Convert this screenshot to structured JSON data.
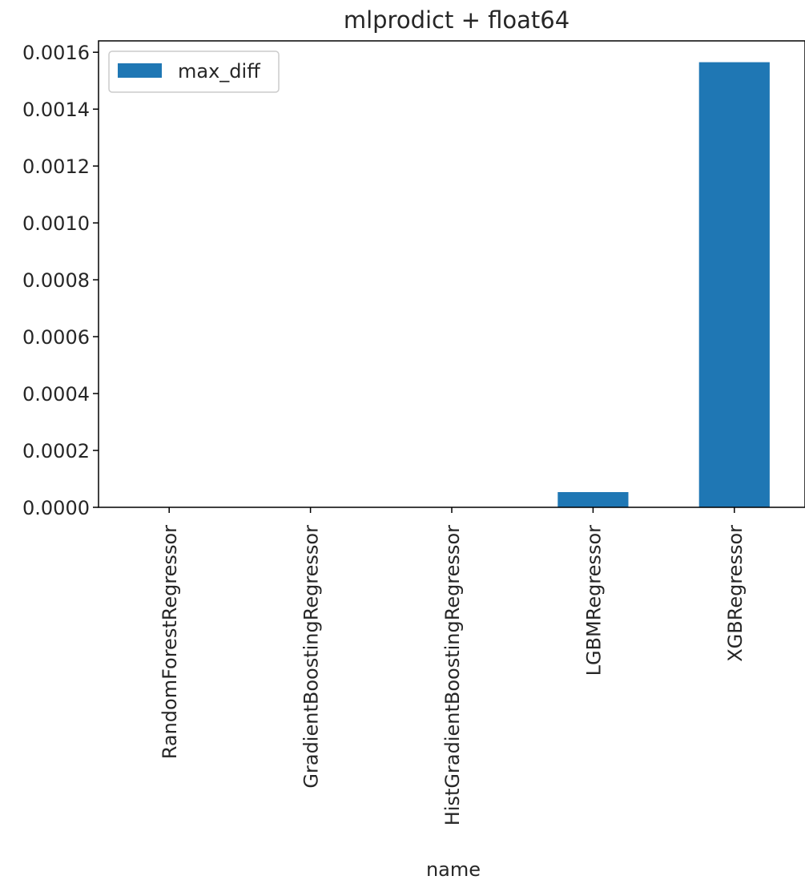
{
  "chart_data": {
    "type": "bar",
    "title": "mlprodict + float64",
    "xlabel": "name",
    "ylabel": "",
    "categories": [
      "RandomForestRegressor",
      "GradientBoostingRegressor",
      "HistGradientBoostingRegressor",
      "LGBMRegressor",
      "XGBRegressor"
    ],
    "series": [
      {
        "name": "max_diff",
        "color": "#1f77b4",
        "values": [
          0.0,
          0.0,
          0.0,
          5.35e-05,
          0.001565
        ]
      }
    ],
    "ylim": [
      0,
      0.00164
    ],
    "yticks": [
      "0.0000",
      "0.0002",
      "0.0004",
      "0.0006",
      "0.0008",
      "0.0010",
      "0.0012",
      "0.0014",
      "0.0016"
    ],
    "ytick_values": [
      0,
      0.0002,
      0.0004,
      0.0006,
      0.0008,
      0.001,
      0.0012,
      0.0014,
      0.0016
    ],
    "legend_position": "top-left",
    "grid": false
  }
}
